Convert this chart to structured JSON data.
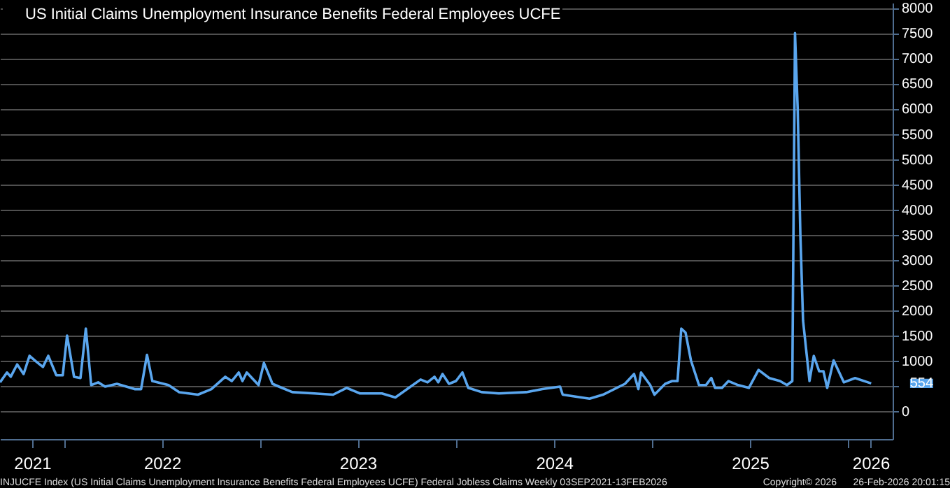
{
  "chart_data": {
    "type": "line",
    "series": [
      {
        "name": "US Initial Claims Unemployment Insurance Benefits Federal Employees UCFE",
        "color": "#5aa6ee",
        "x": [
          "2021-09-03",
          "2021-09-16",
          "2021-09-23",
          "2021-10-05",
          "2021-10-17",
          "2021-10-28",
          "2021-11-09",
          "2021-11-22",
          "2021-12-02",
          "2021-12-17",
          "2021-12-29",
          "2022-01-06",
          "2022-01-19",
          "2022-01-31",
          "2022-02-10",
          "2022-02-20",
          "2022-03-05",
          "2022-03-18",
          "2022-04-09",
          "2022-05-12",
          "2022-05-24",
          "2022-06-04",
          "2022-06-14",
          "2022-07-14",
          "2022-08-03",
          "2022-09-07",
          "2022-10-02",
          "2022-10-28",
          "2022-11-09",
          "2022-11-22",
          "2022-11-29",
          "2022-12-07",
          "2022-12-29",
          "2023-01-08",
          "2023-01-24",
          "2023-02-05",
          "2023-03-02",
          "2023-04-12",
          "2023-05-17",
          "2023-06-11",
          "2023-07-06",
          "2023-08-16",
          "2023-09-10",
          "2023-10-02",
          "2023-10-27",
          "2023-11-09",
          "2023-11-22",
          "2023-11-29",
          "2023-12-07",
          "2023-12-19",
          "2024-01-01",
          "2024-01-13",
          "2024-01-24",
          "2024-02-18",
          "2024-03-21",
          "2024-05-11",
          "2024-06-10",
          "2024-07-13",
          "2024-07-18",
          "2024-09-06",
          "2024-10-01",
          "2024-11-11",
          "2024-11-28",
          "2024-12-06",
          "2024-12-11",
          "2024-12-28",
          "2025-01-05",
          "2025-01-25",
          "2025-02-07",
          "2025-02-17",
          "2025-02-24",
          "2025-03-04",
          "2025-03-14",
          "2025-03-29",
          "2025-04-11",
          "2025-04-21",
          "2025-04-28",
          "2025-05-11",
          "2025-05-23",
          "2025-06-10",
          "2025-06-30",
          "2025-07-18",
          "2025-08-07",
          "2025-08-27",
          "2025-09-09",
          "2025-09-19",
          "2025-09-24",
          "2025-09-29",
          "2025-10-04",
          "2025-10-09",
          "2025-10-21",
          "2025-10-29",
          "2025-11-08",
          "2025-11-16",
          "2025-11-23",
          "2025-12-05",
          "2025-12-24",
          "2026-01-14",
          "2026-02-13"
        ],
        "values": [
          575,
          770,
          685,
          930,
          740,
          1100,
          990,
          880,
          1100,
          715,
          715,
          1500,
          685,
          660,
          1640,
          520,
          575,
          490,
          545,
          440,
          440,
          1120,
          600,
          520,
          380,
          330,
          440,
          685,
          600,
          770,
          600,
          770,
          520,
          960,
          545,
          490,
          380,
          355,
          330,
          465,
          355,
          355,
          275,
          440,
          630,
          575,
          685,
          575,
          740,
          545,
          600,
          770,
          465,
          380,
          355,
          380,
          440,
          490,
          330,
          250,
          330,
          545,
          740,
          440,
          770,
          520,
          330,
          545,
          600,
          600,
          1640,
          1560,
          1010,
          520,
          520,
          660,
          465,
          465,
          600,
          520,
          465,
          820,
          660,
          600,
          520,
          600,
          7500,
          6000,
          3500,
          1800,
          600,
          1100,
          795,
          795,
          465,
          1010,
          575,
          660,
          554
        ]
      }
    ],
    "xlim": [
      "2021-09-03",
      "2026-03-25"
    ],
    "xticks": [
      {
        "value": "2021-11-02",
        "label": "2021"
      },
      {
        "value": "2022-01-01",
        "label": null
      },
      {
        "value": "2022-07-02",
        "label": "2022"
      },
      {
        "value": "2023-01-01",
        "label": null
      },
      {
        "value": "2023-07-02",
        "label": "2023"
      },
      {
        "value": "2024-01-01",
        "label": null
      },
      {
        "value": "2024-07-02",
        "label": "2024"
      },
      {
        "value": "2025-01-01",
        "label": null
      },
      {
        "value": "2025-07-02",
        "label": "2025"
      },
      {
        "value": "2026-01-01",
        "label": null
      },
      {
        "value": "2026-02-12",
        "label": "2026"
      }
    ],
    "ylim": [
      -550,
      8100
    ],
    "yticks": [
      0,
      {
        "value": 500,
        "label": null
      },
      1000,
      1500,
      2000,
      2500,
      3000,
      3500,
      4000,
      4500,
      5000,
      5500,
      6000,
      6500,
      7000,
      7500,
      8000
    ],
    "grid": "y",
    "legend": "top left",
    "marker": "none",
    "line_style": "solid",
    "annotations": [
      {
        "text": "554",
        "x": "2026-02-13",
        "y": 554
      },
      "INJUCFE Index (US Initial Claims Unemployment Insurance Benefits Federal Employees UCFE) Federal Jobless Claims Weekly 03SEP2021-13FEB2026",
      "Copyright© 2026",
      "26-Feb-2026 20:01:15"
    ]
  }
}
